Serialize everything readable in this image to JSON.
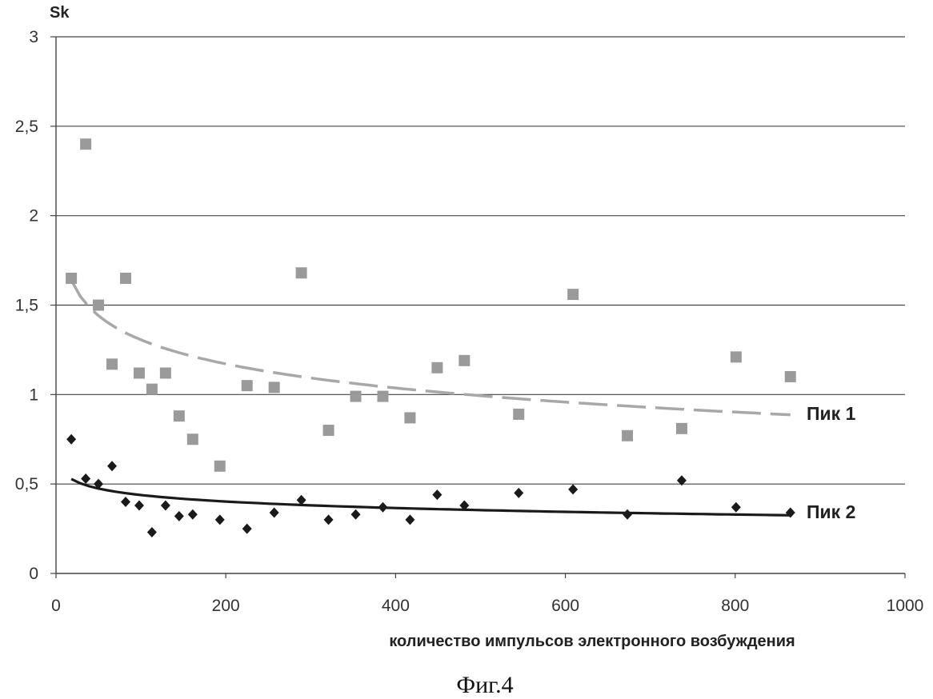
{
  "chart_data": {
    "type": "scatter",
    "ylabel": "Sk",
    "xlabel": "количество импульсов электронного возбуждения",
    "xlim": [
      0,
      1000
    ],
    "ylim": [
      0,
      3
    ],
    "x_ticks": [
      0,
      200,
      400,
      600,
      800,
      1000
    ],
    "y_ticks": [
      "0",
      "0,5",
      "1",
      "1,5",
      "2",
      "2,5",
      "3"
    ],
    "grid": "horizontal",
    "series": [
      {
        "name": "Пик 1",
        "marker": "square",
        "color": "#9a9a9a",
        "trend": "dashed",
        "trend_color": "#a8a8a8",
        "points": [
          [
            18,
            1.65
          ],
          [
            35,
            2.4
          ],
          [
            50,
            1.5
          ],
          [
            66,
            1.17
          ],
          [
            82,
            1.65
          ],
          [
            98,
            1.12
          ],
          [
            113,
            1.03
          ],
          [
            129,
            1.12
          ],
          [
            145,
            0.88
          ],
          [
            161,
            0.75
          ],
          [
            193,
            0.6
          ],
          [
            225,
            1.05
          ],
          [
            257,
            1.04
          ],
          [
            289,
            1.68
          ],
          [
            321,
            0.8
          ],
          [
            353,
            0.99
          ],
          [
            385,
            0.99
          ],
          [
            417,
            0.87
          ],
          [
            449,
            1.15
          ],
          [
            481,
            1.19
          ],
          [
            545,
            0.89
          ],
          [
            609,
            1.56
          ],
          [
            673,
            0.77
          ],
          [
            737,
            0.81
          ],
          [
            801,
            1.21
          ],
          [
            865,
            1.1
          ]
        ]
      },
      {
        "name": "Пик 2",
        "marker": "diamond",
        "color": "#1a1a1a",
        "trend": "solid",
        "trend_color": "#1a1a1a",
        "points": [
          [
            18,
            0.75
          ],
          [
            35,
            0.53
          ],
          [
            50,
            0.5
          ],
          [
            66,
            0.6
          ],
          [
            82,
            0.4
          ],
          [
            98,
            0.38
          ],
          [
            113,
            0.23
          ],
          [
            129,
            0.38
          ],
          [
            145,
            0.32
          ],
          [
            161,
            0.33
          ],
          [
            193,
            0.3
          ],
          [
            225,
            0.25
          ],
          [
            257,
            0.34
          ],
          [
            289,
            0.41
          ],
          [
            321,
            0.3
          ],
          [
            353,
            0.33
          ],
          [
            385,
            0.37
          ],
          [
            417,
            0.3
          ],
          [
            449,
            0.44
          ],
          [
            481,
            0.38
          ],
          [
            545,
            0.45
          ],
          [
            609,
            0.47
          ],
          [
            673,
            0.33
          ],
          [
            737,
            0.52
          ],
          [
            801,
            0.37
          ],
          [
            865,
            0.34
          ]
        ]
      }
    ]
  },
  "caption": "Фиг.4"
}
